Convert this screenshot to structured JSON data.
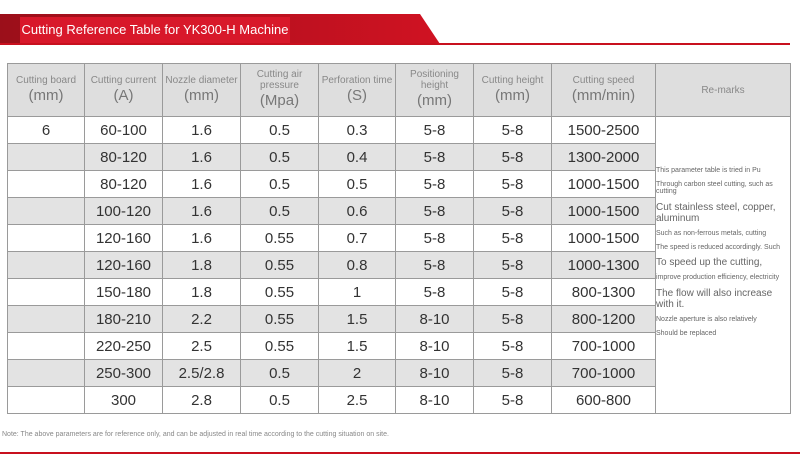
{
  "header": {
    "title": "Cutting Reference Table for YK300-H Machine"
  },
  "table": {
    "headers": [
      {
        "name": "Cutting board",
        "unit": "(mm)"
      },
      {
        "name": "Cutting current",
        "unit": "(A)"
      },
      {
        "name": "Nozzle diameter",
        "unit": "(mm)"
      },
      {
        "name": "Cutting air pressure",
        "unit": "(Mpa)"
      },
      {
        "name": "Perforation time",
        "unit": "(S)"
      },
      {
        "name": "Positioning height",
        "unit": "(mm)"
      },
      {
        "name": "Cutting height",
        "unit": "(mm)"
      },
      {
        "name": "Cutting speed",
        "unit": "(mm/min)"
      },
      {
        "name": "Re-marks"
      }
    ],
    "rows": [
      [
        "6",
        "60-100",
        "1.6",
        "0.5",
        "0.3",
        "5-8",
        "5-8",
        "1500-2500"
      ],
      [
        "",
        "80-120",
        "1.6",
        "0.5",
        "0.4",
        "5-8",
        "5-8",
        "1300-2000"
      ],
      [
        "",
        "80-120",
        "1.6",
        "0.5",
        "0.5",
        "5-8",
        "5-8",
        "1000-1500"
      ],
      [
        "",
        "100-120",
        "1.6",
        "0.5",
        "0.6",
        "5-8",
        "5-8",
        "1000-1500"
      ],
      [
        "",
        "120-160",
        "1.6",
        "0.55",
        "0.7",
        "5-8",
        "5-8",
        "1000-1500"
      ],
      [
        "",
        "120-160",
        "1.8",
        "0.55",
        "0.8",
        "5-8",
        "5-8",
        "1000-1300"
      ],
      [
        "",
        "150-180",
        "1.8",
        "0.55",
        "1",
        "5-8",
        "5-8",
        "800-1300"
      ],
      [
        "",
        "180-210",
        "2.2",
        "0.55",
        "1.5",
        "8-10",
        "5-8",
        "800-1200"
      ],
      [
        "",
        "220-250",
        "2.5",
        "0.55",
        "1.5",
        "8-10",
        "5-8",
        "700-1000"
      ],
      [
        "",
        "250-300",
        "2.5/2.8",
        "0.5",
        "2",
        "8-10",
        "5-8",
        "700-1000"
      ],
      [
        "",
        "300",
        "2.8",
        "0.5",
        "2.5",
        "8-10",
        "5-8",
        "600-800"
      ]
    ],
    "remarks": [
      "This parameter table is tried in Pu",
      "Through carbon steel cutting, such as cutting",
      "Cut stainless steel, copper, aluminum",
      "Such as non-ferrous metals, cutting",
      "The speed is reduced accordingly. Such",
      "To speed up the cutting,",
      "improve production efficiency, electricity",
      "The flow will also increase with it.",
      "Nozzle aperture is also relatively",
      "Should be replaced"
    ]
  },
  "note": "Note: The above parameters are for reference only, and can be adjusted in real time according to the cutting situation on site."
}
